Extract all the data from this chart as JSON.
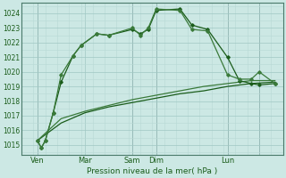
{
  "xlabel": "Pression niveau de la mer( hPa )",
  "bg_color": "#cce8e4",
  "minor_grid_color": "#b8d8d4",
  "major_grid_color": "#a0c8c4",
  "vline_color": "#7a9090",
  "line_color_dark": "#1a5c1a",
  "line_color_light": "#3a7a3a",
  "ylim": [
    1014.3,
    1024.7
  ],
  "xlim": [
    0,
    132
  ],
  "yticks": [
    1015,
    1016,
    1017,
    1018,
    1019,
    1020,
    1021,
    1022,
    1023,
    1024
  ],
  "xtick_positions": [
    8,
    32,
    56,
    68,
    104,
    120
  ],
  "xtick_labels": [
    "Ven",
    "Mar",
    "Sam",
    "Dim",
    "Lun",
    ""
  ],
  "vlines": [
    8,
    56,
    68,
    104,
    120
  ],
  "series1_x": [
    8,
    10,
    12,
    16,
    20,
    26,
    30,
    38,
    44,
    56,
    60,
    64,
    68,
    80,
    86,
    94,
    104,
    110,
    116,
    120,
    128
  ],
  "series1_y": [
    1015.3,
    1014.8,
    1015.3,
    1017.2,
    1019.3,
    1021.1,
    1021.8,
    1022.6,
    1022.5,
    1022.9,
    1022.6,
    1022.9,
    1024.2,
    1024.3,
    1023.2,
    1022.9,
    1021.0,
    1019.4,
    1019.2,
    1019.1,
    1019.2
  ],
  "series2_x": [
    8,
    10,
    12,
    16,
    20,
    26,
    30,
    38,
    44,
    56,
    60,
    64,
    68,
    80,
    86,
    94,
    104,
    110,
    116,
    120,
    128
  ],
  "series2_y": [
    1015.3,
    1014.8,
    1015.3,
    1017.2,
    1019.8,
    1021.1,
    1021.8,
    1022.6,
    1022.5,
    1023.0,
    1022.5,
    1023.0,
    1024.3,
    1024.2,
    1022.9,
    1022.8,
    1019.8,
    1019.5,
    1019.5,
    1020.0,
    1019.2
  ],
  "series3_x": [
    8,
    20,
    32,
    44,
    56,
    68,
    80,
    92,
    104,
    116,
    128
  ],
  "series3_y": [
    1015.3,
    1016.5,
    1017.2,
    1017.6,
    1017.9,
    1018.2,
    1018.5,
    1018.7,
    1019.0,
    1019.2,
    1019.3
  ],
  "series4_x": [
    8,
    20,
    32,
    44,
    56,
    68,
    80,
    92,
    104,
    116,
    128
  ],
  "series4_y": [
    1015.3,
    1016.8,
    1017.3,
    1017.7,
    1018.1,
    1018.4,
    1018.7,
    1019.0,
    1019.2,
    1019.4,
    1019.4
  ]
}
